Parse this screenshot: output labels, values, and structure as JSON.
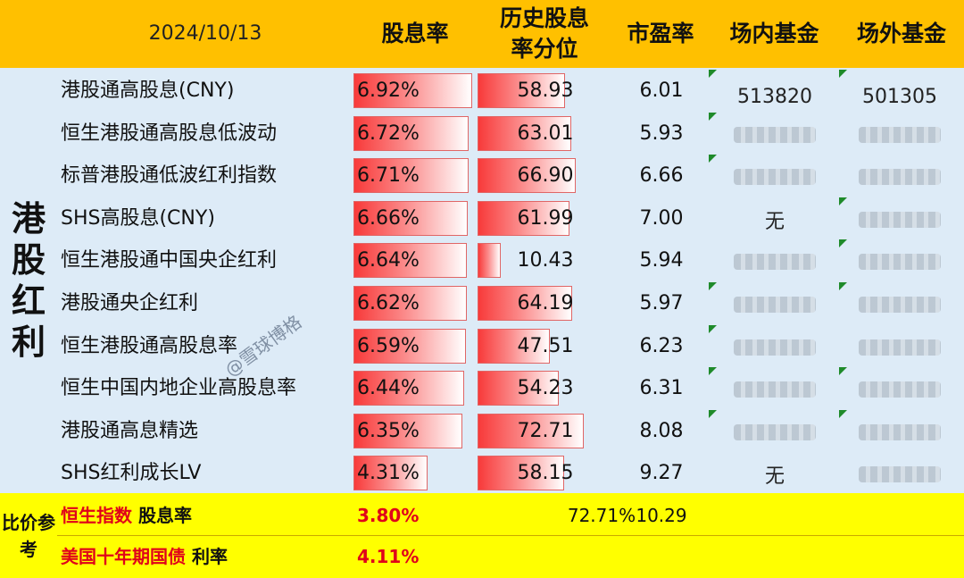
{
  "header": {
    "date": "2024/10/13",
    "col_dividend_yield": "股息率",
    "col_hist_percentile": "历史股息率分位",
    "col_pe": "市盈率",
    "col_exchange_fund": "场内基金",
    "col_otc_fund": "场外基金"
  },
  "group_label": "港股红利",
  "rows": [
    {
      "name": "港股通高股息(CNY)",
      "yield": "6.92%",
      "yield_value": 6.92,
      "percentile": "58.93",
      "percentile_value": 58.93,
      "pe": "6.01",
      "exchange_fund": "513820",
      "otc_fund": "501305"
    },
    {
      "name": "恒生港股通高股息低波动",
      "yield": "6.72%",
      "yield_value": 6.72,
      "percentile": "63.01",
      "percentile_value": 63.01,
      "pe": "5.93",
      "exchange_fund": "",
      "otc_fund": ""
    },
    {
      "name": "标普港股通低波红利指数",
      "yield": "6.71%",
      "yield_value": 6.71,
      "percentile": "66.90",
      "percentile_value": 66.9,
      "pe": "6.66",
      "exchange_fund": "",
      "otc_fund": ""
    },
    {
      "name": "SHS高股息(CNY)",
      "yield": "6.66%",
      "yield_value": 6.66,
      "percentile": "61.99",
      "percentile_value": 61.99,
      "pe": "7.00",
      "exchange_fund": "无",
      "otc_fund": ""
    },
    {
      "name": "恒生港股通中国央企红利",
      "yield": "6.64%",
      "yield_value": 6.64,
      "percentile": "10.43",
      "percentile_value": 10.43,
      "pe": "5.94",
      "exchange_fund": "",
      "otc_fund": ""
    },
    {
      "name": "港股通央企红利",
      "yield": "6.62%",
      "yield_value": 6.62,
      "percentile": "64.19",
      "percentile_value": 64.19,
      "pe": "5.97",
      "exchange_fund": "",
      "otc_fund": ""
    },
    {
      "name": "恒生港股通高股息率",
      "yield": "6.59%",
      "yield_value": 6.59,
      "percentile": "47.51",
      "percentile_value": 47.51,
      "pe": "6.23",
      "exchange_fund": "",
      "otc_fund": ""
    },
    {
      "name": "恒生中国内地企业高股息率",
      "yield": "6.44%",
      "yield_value": 6.44,
      "percentile": "54.23",
      "percentile_value": 54.23,
      "pe": "6.31",
      "exchange_fund": "",
      "otc_fund": ""
    },
    {
      "name": "港股通高息精选",
      "yield": "6.35%",
      "yield_value": 6.35,
      "percentile": "72.71",
      "percentile_value": 72.71,
      "pe": "8.08",
      "exchange_fund": "",
      "otc_fund": ""
    },
    {
      "name": "SHS红利成长LV",
      "yield": "4.31%",
      "yield_value": 4.31,
      "percentile": "58.15",
      "percentile_value": 58.15,
      "pe": "9.27",
      "exchange_fund": "无",
      "otc_fund": ""
    }
  ],
  "compare_label": "比价参考",
  "compare": [
    {
      "name_red": "恒生指数",
      "name_black": " 股息率",
      "yield": "3.80%",
      "percentile": "72.71%",
      "pe": "10.29"
    },
    {
      "name_red": "美国十年期国债",
      "name_black": " 利率",
      "yield": "4.11%",
      "percentile": "",
      "pe": ""
    }
  ],
  "watermark": "@雪球博格",
  "colors": {
    "header_bg": "#ffc000",
    "body_bg": "#ddebf7",
    "footer_bg": "#ffff00",
    "bar": "#f83a3a",
    "accent_red": "#e0001a"
  }
}
